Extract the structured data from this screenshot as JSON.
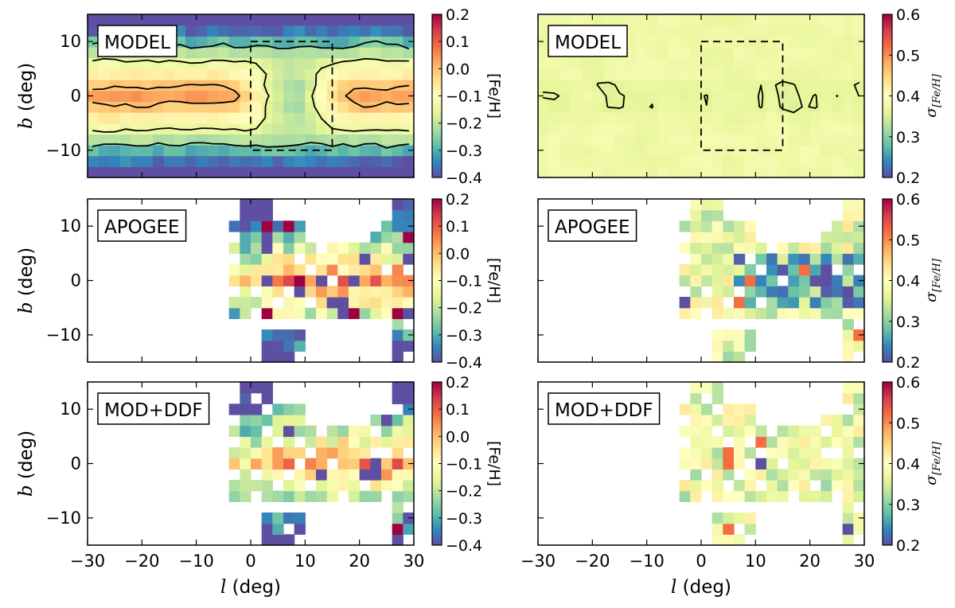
{
  "colors": {
    "colormap": [
      "#5e4fa2",
      "#3288bd",
      "#66c2a5",
      "#abdda4",
      "#e6f598",
      "#ffffbf",
      "#fee08b",
      "#fdae61",
      "#f46d43",
      "#d53e4f",
      "#9e0142"
    ],
    "contour": "#000000",
    "frame": "#000000"
  },
  "chart_data": [
    {
      "panel": "top-left",
      "type": "heatmap",
      "label": "MODEL",
      "metric": "mean [Fe/H]",
      "xlabel_italic": "l",
      "xlabel_rest": " (deg)",
      "ylabel_italic": "b",
      "ylabel_rest": " (deg)",
      "xlim": [
        -30,
        30
      ],
      "ylim": [
        -15,
        15
      ],
      "cb_label": "[Fe/H]",
      "cb_range": [
        -0.4,
        0.2
      ],
      "cb_ticks": [
        "0.2",
        "0.1",
        "0.0",
        "−0.1",
        "−0.2",
        "−0.3",
        "−0.4"
      ],
      "contours": [
        -0.25,
        -0.15,
        0.0
      ],
      "box_l": [
        0,
        15
      ],
      "box_b": [
        -10,
        10
      ]
    },
    {
      "panel": "top-right",
      "type": "heatmap",
      "label": "MODEL",
      "metric": "dispersion of [Fe/H]",
      "xlim": [
        -30,
        30
      ],
      "ylim": [
        -15,
        15
      ],
      "cb_label": "σ",
      "cb_sub": "[Fe/H]",
      "cb_range": [
        0.2,
        0.6
      ],
      "cb_ticks": [
        "0.6",
        "0.5",
        "0.4",
        "0.3",
        "0.2"
      ],
      "contours": [
        0.36
      ],
      "box_l": [
        0,
        15
      ],
      "box_b": [
        -10,
        10
      ]
    },
    {
      "panel": "middle-left",
      "type": "heatmap",
      "label": "APOGEE",
      "metric": "mean [Fe/H]",
      "xlim": [
        -30,
        30
      ],
      "ylim": [
        -15,
        15
      ],
      "cb_label": "[Fe/H]",
      "cb_range": [
        -0.4,
        0.2
      ],
      "cb_ticks": [
        "0.2",
        "0.1",
        "0.0",
        "−0.1",
        "−0.2",
        "−0.3",
        "−0.4"
      ]
    },
    {
      "panel": "middle-right",
      "type": "heatmap",
      "label": "APOGEE",
      "metric": "dispersion of [Fe/H]",
      "xlim": [
        -30,
        30
      ],
      "ylim": [
        -15,
        15
      ],
      "cb_label": "σ",
      "cb_sub": "[Fe/H]",
      "cb_range": [
        0.2,
        0.6
      ],
      "cb_ticks": [
        "0.6",
        "0.5",
        "0.4",
        "0.3",
        "0.2"
      ]
    },
    {
      "panel": "bottom-left",
      "type": "heatmap",
      "label": "MOD+DDF",
      "metric": "mean [Fe/H]",
      "xlim": [
        -30,
        30
      ],
      "ylim": [
        -15,
        15
      ],
      "cb_label": "[Fe/H]",
      "cb_range": [
        -0.4,
        0.2
      ],
      "cb_ticks": [
        "0.2",
        "0.1",
        "0.0",
        "−0.1",
        "−0.2",
        "−0.3",
        "−0.4"
      ]
    },
    {
      "panel": "bottom-right",
      "type": "heatmap",
      "label": "MOD+DDF",
      "metric": "dispersion of [Fe/H]",
      "xlim": [
        -30,
        30
      ],
      "ylim": [
        -15,
        15
      ],
      "cb_label": "σ",
      "cb_sub": "[Fe/H]",
      "cb_range": [
        0.2,
        0.6
      ],
      "cb_ticks": [
        "0.6",
        "0.5",
        "0.4",
        "0.3",
        "0.2"
      ]
    }
  ],
  "axes": {
    "x_ticks": [
      "−30",
      "−20",
      "−10",
      "0",
      "10",
      "20",
      "30"
    ],
    "x_tick_values": [
      -30,
      -20,
      -10,
      0,
      10,
      20,
      30
    ],
    "y_ticks": [
      "10",
      "0",
      "−10"
    ],
    "y_tick_values": [
      10,
      0,
      -10
    ],
    "xlabel_italic": "l",
    "xlabel_rest": " (deg)",
    "ylabel_italic": "b",
    "ylabel_rest": " (deg)"
  }
}
